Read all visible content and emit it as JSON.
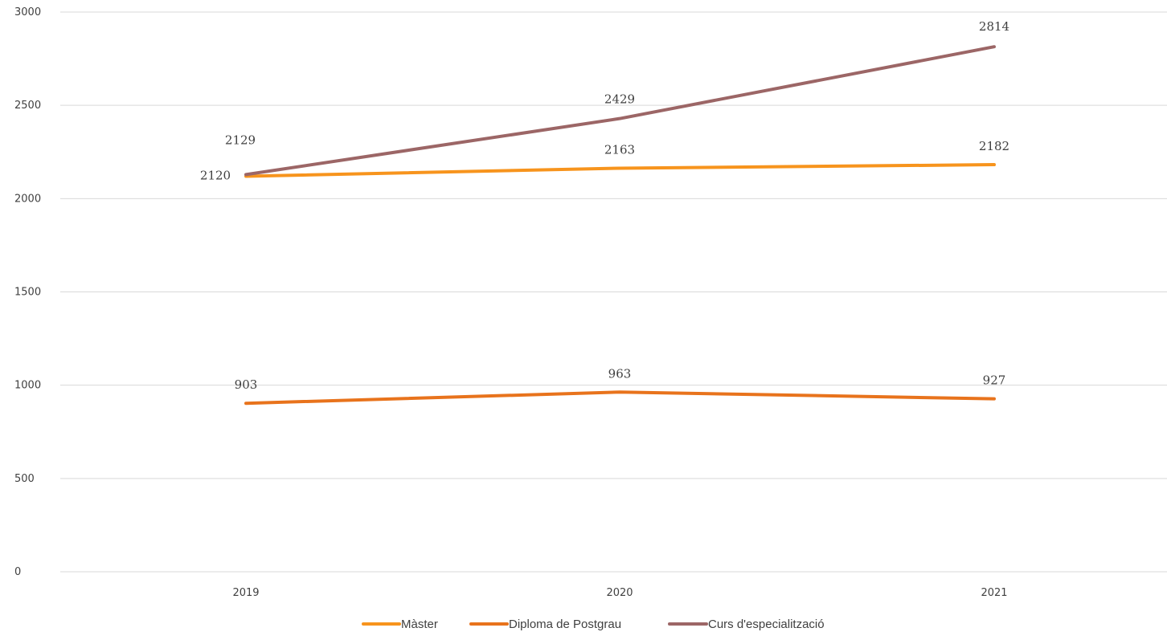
{
  "chart_data": {
    "type": "line",
    "categories": [
      "2019",
      "2020",
      "2021"
    ],
    "ylim": [
      0,
      3000
    ],
    "yticks": [
      0,
      500,
      1000,
      1500,
      2000,
      2500,
      3000
    ],
    "grid": true,
    "legend_position": "bottom",
    "series": [
      {
        "name": "Màster",
        "values": [
          2120,
          2163,
          2182
        ],
        "color": "#f7941d"
      },
      {
        "name": "Diploma de Postgrau",
        "values": [
          903,
          963,
          927
        ],
        "color": "#e8731c"
      },
      {
        "name": "Curs d'especialització",
        "values": [
          2129,
          2429,
          2814
        ],
        "color": "#9c6666"
      }
    ]
  }
}
